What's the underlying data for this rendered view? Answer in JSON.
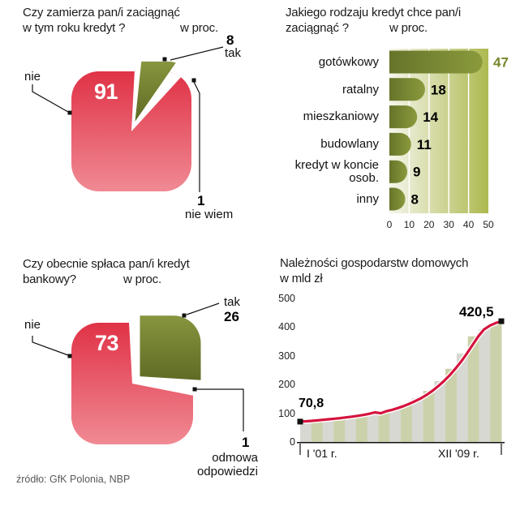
{
  "meta": {
    "source": "źródło: GfK Polonia, NBP"
  },
  "colors": {
    "red_top": "#e03246",
    "red_bottom": "#f08a94",
    "olive_light": "#87953f",
    "olive_dark": "#5f6b24",
    "bar_fill_left": "#66742a",
    "bar_fill_right": "#8a9a3c",
    "barplot_left": "#f6f6ec",
    "barplot_right": "#adb94f",
    "accent_value": "#76862b",
    "line_red": "#d5133d",
    "stripe_a": "#d7d8d2",
    "stripe_b": "#cbd2ab"
  },
  "chart_data": [
    {
      "id": "intent_pie",
      "type": "pie",
      "title_line1": "Czy zamierza pan/i zaciągnąć",
      "title_line2": "w tym roku kredyt ?",
      "unit": "w proc.",
      "slices": [
        {
          "label": "nie",
          "value": 91
        },
        {
          "label": "tak",
          "value": 8
        },
        {
          "label": "nie wiem",
          "value": 1
        }
      ]
    },
    {
      "id": "credit_type_bars",
      "type": "bar",
      "title_line1": "Jakiego rodzaju kredyt chce pan/i",
      "title_line2": "zaciągnąć ?",
      "unit": "w proc.",
      "categories": [
        "gotówkowy",
        "ratalny",
        "mieszkaniowy",
        "budowlany",
        "kredyt w koncie osob.",
        "inny"
      ],
      "values": [
        47,
        18,
        14,
        11,
        9,
        8
      ],
      "xlim": [
        0,
        50
      ],
      "xticks": [
        0,
        10,
        20,
        30,
        40,
        50
      ]
    },
    {
      "id": "repaying_pie",
      "type": "pie",
      "title_line1": "Czy obecnie spłaca pan/i kredyt",
      "title_line2": "bankowy?",
      "unit": "w proc.",
      "slices": [
        {
          "label": "nie",
          "value": 73
        },
        {
          "label": "tak",
          "value": 26
        },
        {
          "label": "odmowa odpowiedzi",
          "value": 1
        }
      ]
    },
    {
      "id": "receivables_line",
      "type": "line",
      "title_line1": "Należności gospodarstw domowych",
      "title_line2": "w mld zł",
      "x_start_label": "I '01 r.",
      "x_end_label": "XII '09 r.",
      "start_value_label": "70,8",
      "end_value_label": "420,5",
      "ylim": [
        0,
        500
      ],
      "yticks": [
        500,
        400,
        300,
        200,
        100,
        0
      ],
      "values": [
        70.8,
        72,
        73.5,
        75,
        77,
        79,
        81,
        83,
        85.5,
        88,
        91,
        94,
        98,
        103,
        100,
        107,
        112,
        118,
        125,
        133,
        142,
        152,
        164,
        178,
        194,
        212,
        232,
        255,
        280,
        308,
        338,
        368,
        392,
        405,
        414,
        420.5
      ]
    }
  ]
}
